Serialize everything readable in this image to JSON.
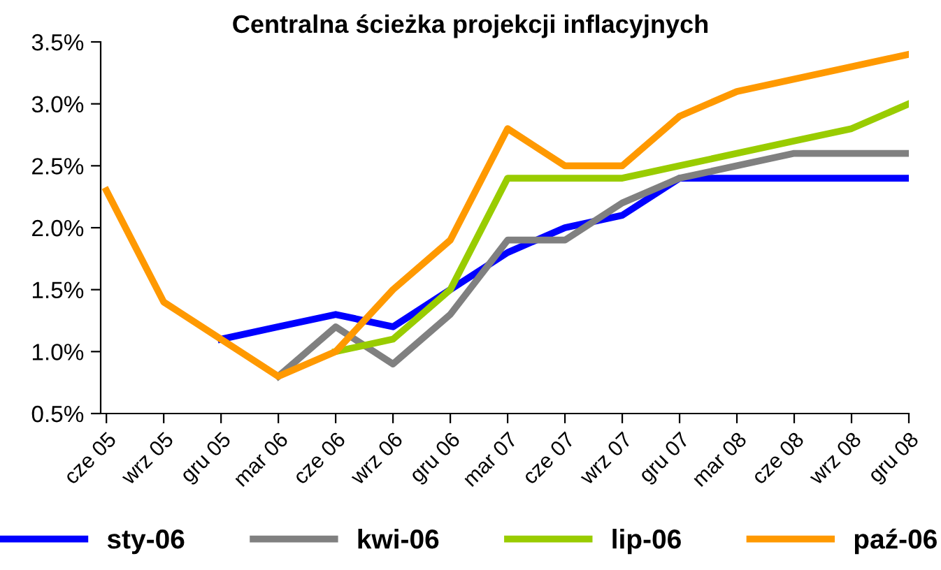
{
  "chart_data": {
    "type": "line",
    "title": "Centralna ścieżka projekcji inflacyjnych",
    "categories": [
      "cze 05",
      "wrz 05",
      "gru 05",
      "mar 06",
      "cze 06",
      "wrz 06",
      "gru 06",
      "mar 07",
      "cze 07",
      "wrz 07",
      "gru 07",
      "mar 08",
      "cze 08",
      "wrz 08",
      "gru 08"
    ],
    "series": [
      {
        "name": "sty-06",
        "color": "#0000ff",
        "values": [
          null,
          null,
          1.1,
          1.2,
          1.3,
          1.2,
          1.5,
          1.8,
          2.0,
          2.1,
          2.4,
          2.4,
          2.4,
          2.4,
          2.4
        ]
      },
      {
        "name": "kwi-06",
        "color": "#808080",
        "values": [
          null,
          null,
          null,
          0.8,
          1.2,
          0.9,
          1.3,
          1.9,
          1.9,
          2.2,
          2.4,
          2.5,
          2.6,
          2.6,
          2.6
        ]
      },
      {
        "name": "lip-06",
        "color": "#99cc00",
        "values": [
          null,
          null,
          null,
          null,
          1.0,
          1.1,
          1.5,
          2.4,
          2.4,
          2.4,
          2.5,
          2.6,
          2.7,
          2.8,
          3.0
        ]
      },
      {
        "name": "paź-06",
        "color": "#ff9900",
        "values": [
          2.3,
          1.4,
          1.1,
          0.8,
          1.0,
          1.5,
          1.9,
          2.8,
          2.5,
          2.5,
          2.9,
          3.1,
          3.2,
          3.3,
          3.4
        ]
      }
    ],
    "ylim": [
      0.5,
      3.5
    ],
    "yticks": [
      {
        "value": 0.5,
        "label": "0.5%"
      },
      {
        "value": 1.0,
        "label": "1.0%"
      },
      {
        "value": 1.5,
        "label": "1.5%"
      },
      {
        "value": 2.0,
        "label": "2.0%"
      },
      {
        "value": 2.5,
        "label": "2.5%"
      },
      {
        "value": 3.0,
        "label": "3.0%"
      },
      {
        "value": 3.5,
        "label": "3.5%"
      }
    ],
    "grid": false,
    "legend": "bottom",
    "marker": "none",
    "line_style": "solid"
  }
}
